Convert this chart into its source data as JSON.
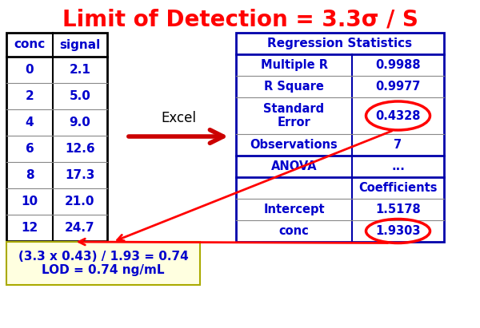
{
  "title": "Limit of Detection = 3.3σ / S",
  "title_color": "#ff0000",
  "title_fontsize": 20,
  "left_table_headers": [
    "conc",
    "signal"
  ],
  "left_table_data": [
    [
      "0",
      "2.1"
    ],
    [
      "2",
      "5.0"
    ],
    [
      "4",
      "9.0"
    ],
    [
      "6",
      "12.6"
    ],
    [
      "8",
      "17.3"
    ],
    [
      "10",
      "21.0"
    ],
    [
      "12",
      "24.7"
    ]
  ],
  "right_table_title": "Regression Statistics",
  "right_table_rows": [
    [
      "Multiple R",
      "0.9988"
    ],
    [
      "R Square",
      "0.9977"
    ],
    [
      "Standard\nError",
      "0.4328"
    ],
    [
      "Observations",
      "7"
    ],
    [
      "ANOVA",
      "..."
    ],
    [
      "",
      "Coefficients"
    ],
    [
      "Intercept",
      "1.5178"
    ],
    [
      "conc",
      "1.9303"
    ]
  ],
  "arrow_label": "Excel",
  "annotation_text": "(3.3 x 0.43) / 1.93 = 0.74\nLOD = 0.74 ng/mL",
  "annotation_bg": "#ffffe0",
  "cell_text_color": "#0000cc",
  "table_border_color": "#0000aa",
  "bg_color": "#ffffff",
  "fig_w": 6.0,
  "fig_h": 4.11,
  "dpi": 100
}
